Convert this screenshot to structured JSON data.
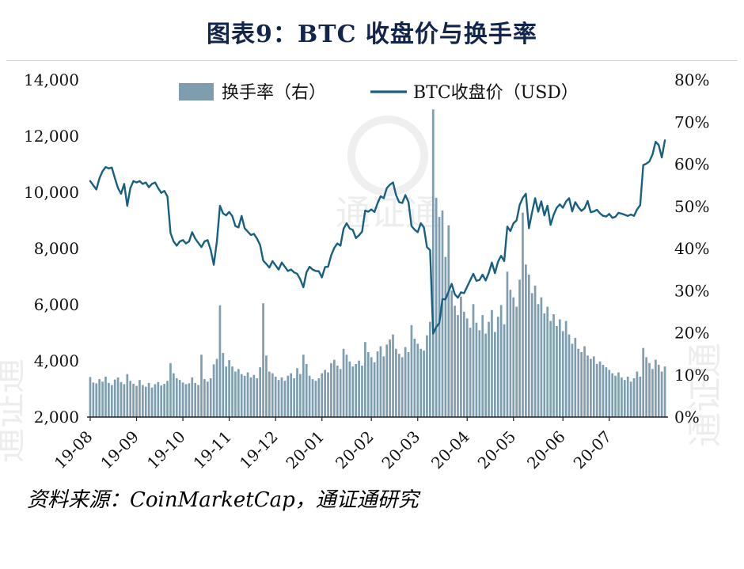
{
  "title": "图表9：BTC 收盘价与换手率",
  "source": "资料来源：CoinMarketCap，通证通研究",
  "watermark": "通证通",
  "legend": {
    "bars": "换手率（右）",
    "line": "BTC收盘价（USD）"
  },
  "colors": {
    "bar": "#7E9EB0",
    "line": "#17607F",
    "title_text": "#12254C",
    "divider": "#D9D9D9",
    "axis": "#222222",
    "tick_text": "#111111"
  },
  "chart_data": {
    "type": "combo",
    "title": "图表9：BTC 收盘价与换手率",
    "grid": false,
    "legend_position": "top-center",
    "x_tick_labels": [
      "19-08",
      "19-09",
      "19-10",
      "19-11",
      "19-12",
      "20-01",
      "20-02",
      "20-03",
      "20-04",
      "20-05",
      "20-06",
      "20-07"
    ],
    "x_tick_index": [
      0,
      15,
      30,
      45,
      60,
      75,
      91,
      106,
      122,
      137,
      153,
      168
    ],
    "left_axis": {
      "min": 2000,
      "max": 14000,
      "step": 2000,
      "ticks": [
        2000,
        4000,
        6000,
        8000,
        10000,
        12000,
        14000
      ],
      "tick_labels": [
        "2,000",
        "4,000",
        "6,000",
        "8,000",
        "10,000",
        "12,000",
        "14,000"
      ],
      "series": "BTC收盘价（USD）"
    },
    "right_axis": {
      "min": 0,
      "max": 80,
      "step": 10,
      "unit": "%",
      "ticks": [
        0,
        10,
        20,
        30,
        40,
        50,
        60,
        70,
        80
      ],
      "tick_labels": [
        "0%",
        "10%",
        "20%",
        "30%",
        "40%",
        "50%",
        "60%",
        "70%",
        "80%"
      ],
      "series": "换手率（右）"
    },
    "series": [
      {
        "name": "换手率（右）",
        "type": "bar",
        "axis": "right",
        "unit": "%",
        "values": [
          9.5,
          8.2,
          8.0,
          9.0,
          8.4,
          9.6,
          8.1,
          7.6,
          8.9,
          9.4,
          8.3,
          7.8,
          10.2,
          8.6,
          7.9,
          7.4,
          8.8,
          7.6,
          7.2,
          8.1,
          7.0,
          7.8,
          8.3,
          7.5,
          7.9,
          8.6,
          12.8,
          10.4,
          9.2,
          8.8,
          8.2,
          7.8,
          8.0,
          9.4,
          8.1,
          7.6,
          14.8,
          9.0,
          8.4,
          9.2,
          12.5,
          13.8,
          26.5,
          15.2,
          12.0,
          13.5,
          12.0,
          10.8,
          11.4,
          10.2,
          9.8,
          10.6,
          9.4,
          10.0,
          9.2,
          11.8,
          27.0,
          14.6,
          10.8,
          10.4,
          9.6,
          8.8,
          9.4,
          8.6,
          9.8,
          10.4,
          9.2,
          11.6,
          10.2,
          14.8,
          12.6,
          9.8,
          9.0,
          8.6,
          9.2,
          10.4,
          11.2,
          10.6,
          12.8,
          13.6,
          12.2,
          11.4,
          16.2,
          14.8,
          13.2,
          12.0,
          12.6,
          13.4,
          12.2,
          17.8,
          15.4,
          14.2,
          13.0,
          15.6,
          16.8,
          14.4,
          17.2,
          18.4,
          19.6,
          16.2,
          15.0,
          14.2,
          16.6,
          15.4,
          21.8,
          18.6,
          17.4,
          16.2,
          15.8,
          19.4,
          22.6,
          73.0,
          52.0,
          47.5,
          49.0,
          38.0,
          45.5,
          30.0,
          26.4,
          24.2,
          28.6,
          25.0,
          23.4,
          21.2,
          26.8,
          22.4,
          20.6,
          24.2,
          19.8,
          22.6,
          25.4,
          20.2,
          23.8,
          26.6,
          22.0,
          34.5,
          30.2,
          28.4,
          26.2,
          32.6,
          48.5,
          36.2,
          33.8,
          29.4,
          31.2,
          26.8,
          28.4,
          24.6,
          26.2,
          22.8,
          24.4,
          21.6,
          23.2,
          20.4,
          22.8,
          19.6,
          17.4,
          18.8,
          16.2,
          15.4,
          16.8,
          14.6,
          13.8,
          14.4,
          12.6,
          13.2,
          12.4,
          11.8,
          11.2,
          10.4,
          9.8,
          10.6,
          9.4,
          8.8,
          9.6,
          8.4,
          9.2,
          10.8,
          9.6,
          16.4,
          14.2,
          12.8,
          11.4,
          13.6,
          12.4,
          10.8,
          12.0
        ]
      },
      {
        "name": "BTC收盘价（USD）",
        "type": "line",
        "axis": "left",
        "unit": "USD",
        "values": [
          10400,
          10250,
          10100,
          10500,
          10750,
          10900,
          10850,
          10880,
          10500,
          10150,
          9950,
          10300,
          9520,
          10150,
          10400,
          10350,
          10400,
          10300,
          10350,
          10180,
          10300,
          10350,
          10150,
          9980,
          10050,
          9850,
          8550,
          8250,
          8100,
          8250,
          8300,
          8180,
          8250,
          8580,
          8350,
          8200,
          8050,
          8250,
          8300,
          7950,
          7420,
          8250,
          9520,
          9250,
          9180,
          9300,
          9150,
          8800,
          8750,
          9160,
          8720,
          8600,
          8480,
          8520,
          8350,
          8120,
          7570,
          7450,
          7320,
          7550,
          7400,
          7250,
          7500,
          7350,
          7200,
          7250,
          7150,
          7100,
          6900,
          6620,
          7150,
          7350,
          7250,
          7200,
          7190,
          6970,
          7340,
          7350,
          7760,
          8020,
          8180,
          8100,
          8700,
          8900,
          8710,
          8660,
          8370,
          8470,
          8600,
          9350,
          9310,
          9390,
          9300,
          9610,
          9860,
          9790,
          10150,
          10270,
          10350,
          9900,
          9650,
          9620,
          9900,
          9660,
          8800,
          8670,
          8580,
          8900,
          8750,
          8050,
          7940,
          4970,
          5200,
          5350,
          6200,
          6190,
          6470,
          6740,
          6370,
          6250,
          6440,
          6410,
          6640,
          6870,
          7100,
          6850,
          6880,
          7070,
          6860,
          7130,
          7500,
          7120,
          7530,
          7740,
          7550,
          8780,
          8620,
          8900,
          9000,
          9550,
          9800,
          9950,
          8720,
          9280,
          9790,
          9310,
          9680,
          9180,
          9520,
          8840,
          9200,
          9450,
          9570,
          9450,
          9670,
          9790,
          9320,
          9650,
          9470,
          9340,
          9430,
          9690,
          9290,
          9320,
          9380,
          9250,
          9160,
          9140,
          9230,
          9090,
          9130,
          9270,
          9240,
          9200,
          9160,
          9210,
          9160,
          9390,
          9540,
          10970,
          11020,
          11100,
          11350,
          11800,
          11680,
          11240,
          11850
        ]
      }
    ]
  }
}
